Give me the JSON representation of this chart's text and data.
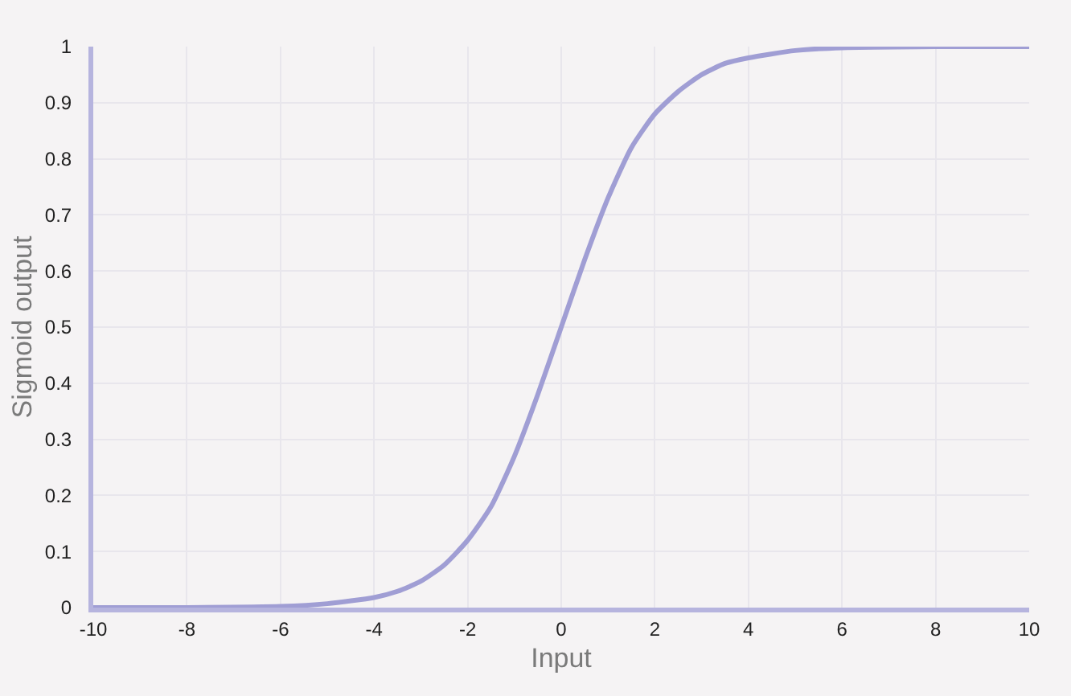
{
  "chart_data": {
    "type": "line",
    "xlabel": "Input",
    "ylabel": "Sigmoid output",
    "xlim": [
      -10,
      10
    ],
    "xticks": [
      -10,
      -8,
      -6,
      -4,
      -2,
      0,
      2,
      4,
      6,
      8,
      10
    ],
    "ylim": [
      0,
      1
    ],
    "yticks": [
      0,
      0.1,
      0.2,
      0.3,
      0.4,
      0.5,
      0.6,
      0.7,
      0.8,
      0.9,
      1
    ],
    "grid": true,
    "marker": "none",
    "line_style": "solid",
    "series": [
      {
        "color": "#a09ed4",
        "x": [
          -10,
          -8,
          -6,
          -5,
          -4,
          -3.5,
          -3,
          -2.5,
          -2,
          -1.5,
          -1,
          -0.5,
          0,
          0.5,
          1,
          1.5,
          2,
          2.5,
          3,
          3.5,
          4,
          5,
          6,
          8,
          10
        ],
        "values": [
          0,
          0,
          0.002,
          0.007,
          0.018,
          0.029,
          0.047,
          0.076,
          0.12,
          0.18,
          0.27,
          0.38,
          0.5,
          0.62,
          0.73,
          0.82,
          0.88,
          0.92,
          0.95,
          0.97,
          0.98,
          0.993,
          0.998,
          1,
          1
        ]
      }
    ]
  }
}
